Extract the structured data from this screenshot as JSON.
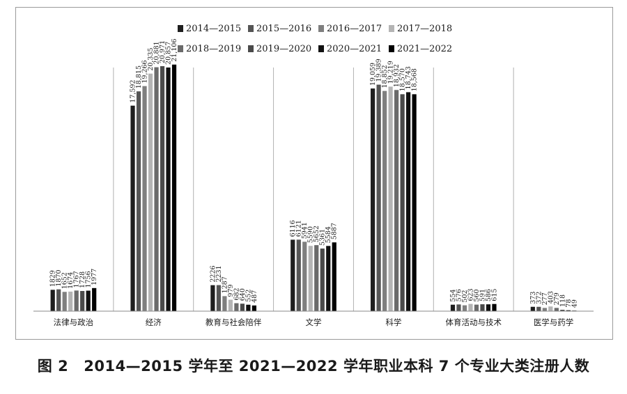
{
  "caption": {
    "label": "图 2",
    "text": "2014—2015 学年至 2021—2022 学年职业本科 7 个专业大类注册人数"
  },
  "colors": {
    "series": [
      "#1e1e1e",
      "#555555",
      "#7f7f7f",
      "#b4b4b4",
      "#6a6a6a",
      "#4a4a4a",
      "#111111",
      "#000000"
    ],
    "separator": "#b0b0b0",
    "axis": "#8a8a8a"
  },
  "chart_data": {
    "type": "bar",
    "title": "",
    "xlabel": "",
    "ylabel": "",
    "ylim": [
      0,
      23000
    ],
    "grid": false,
    "legend_position": "top",
    "categories": [
      "法律与政治",
      "经济",
      "教育与社会陪伴",
      "文学",
      "科学",
      "体育活动与技术",
      "医学与药学"
    ],
    "series": [
      {
        "name": "2014—2015",
        "values": [
          1829,
          17592,
          2226,
          6116,
          19059,
          554,
          373
        ],
        "labels": [
          "1829",
          "17,592",
          "2226",
          "6116",
          "19,059",
          "554",
          "373"
        ]
      },
      {
        "name": "2015—2016",
        "values": [
          1870,
          18815,
          2231,
          6121,
          19389,
          576,
          372
        ],
        "labels": [
          "1870",
          "18,815",
          "2231",
          "6121",
          "19,389",
          "576",
          "372"
        ]
      },
      {
        "name": "2016—2017",
        "values": [
          1652,
          19266,
          1287,
          5941,
          18852,
          502,
          277
        ],
        "labels": [
          "1652",
          "19,266",
          "1287",
          "5941",
          "18,852",
          "502",
          "277"
        ]
      },
      {
        "name": "2017—2018",
        "values": [
          1674,
          20335,
          979,
          5590,
          19219,
          623,
          403
        ],
        "labels": [
          "1674",
          "20,335",
          "979",
          "5590",
          "19,219",
          "623",
          "403"
        ]
      },
      {
        "name": "2018—2019",
        "values": [
          1767,
          20881,
          682,
          5652,
          18932,
          560,
          279
        ],
        "labels": [
          "1767",
          "20,881",
          "682",
          "5652",
          "18,932",
          "560",
          "279"
        ]
      },
      {
        "name": "2019—2020",
        "values": [
          1728,
          20971,
          640,
          5361,
          18570,
          591,
          118
        ],
        "labels": [
          "1728",
          "20,971",
          "640",
          "5361",
          "18,570",
          "591",
          "118"
        ]
      },
      {
        "name": "2020—2021",
        "values": [
          1756,
          20857,
          552,
          5584,
          18743,
          586,
          78
        ],
        "labels": [
          "1756",
          "20,857",
          "552",
          "5584",
          "18,743",
          "586",
          "78"
        ]
      },
      {
        "name": "2021—2022",
        "values": [
          1977,
          21106,
          487,
          5887,
          18568,
          615,
          49
        ],
        "labels": [
          "1977",
          "21,106",
          "487",
          "5887",
          "18,568",
          "615",
          "49"
        ]
      }
    ]
  }
}
